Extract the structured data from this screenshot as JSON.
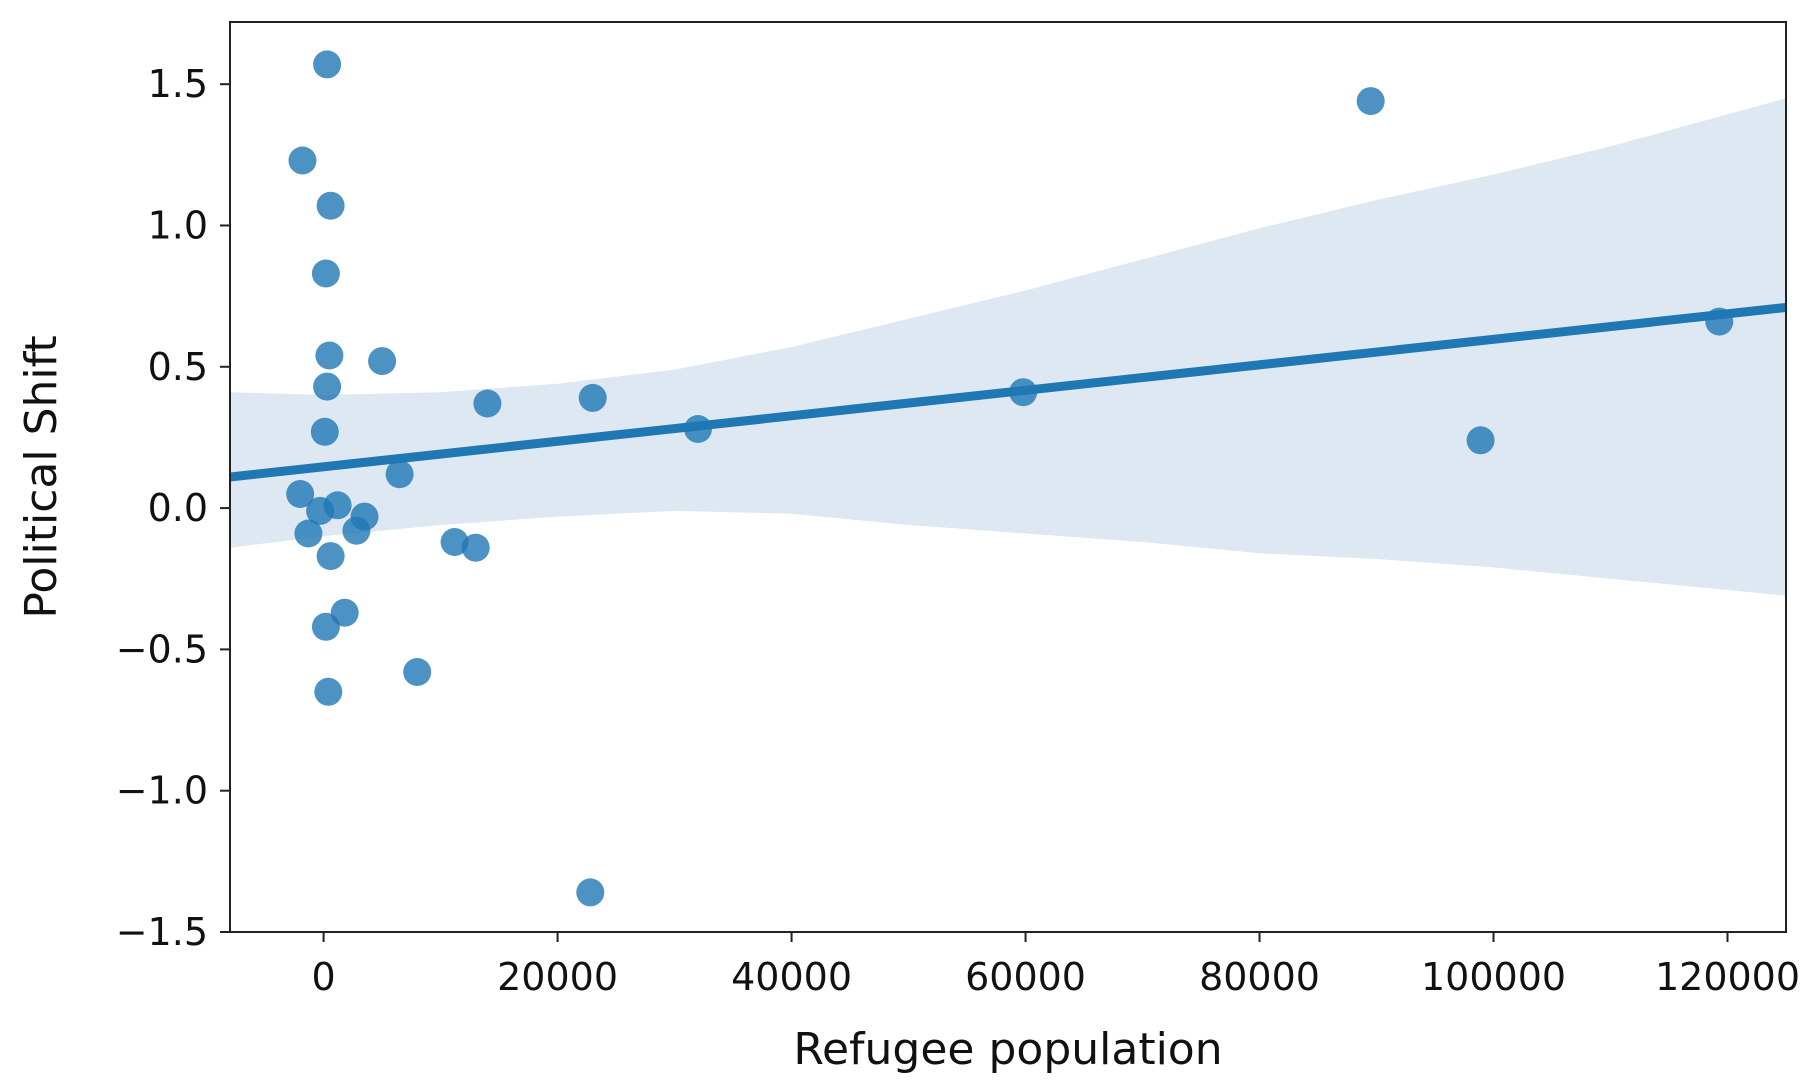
{
  "chart_data": {
    "type": "scatter",
    "title": "",
    "xlabel": "Refugee population",
    "ylabel": "Political Shift",
    "xlim": [
      -8000,
      125000
    ],
    "ylim": [
      -1.5,
      1.72
    ],
    "x_ticks": [
      0,
      20000,
      40000,
      60000,
      80000,
      100000,
      120000
    ],
    "x_tick_labels": [
      "0",
      "20000",
      "40000",
      "60000",
      "80000",
      "100000",
      "120000"
    ],
    "y_ticks": [
      -1.5,
      -1.0,
      -0.5,
      0.0,
      0.5,
      1.0,
      1.5
    ],
    "y_tick_labels": [
      "−1.5",
      "−1.0",
      "−0.5",
      "0.0",
      "0.5",
      "1.0",
      "1.5"
    ],
    "grid": false,
    "legend": "none",
    "colors": {
      "points": "#1f77b4",
      "regression_line": "#1f77b4",
      "confidence_band": "#dde8f2",
      "axes": "#222222",
      "text": "#111111",
      "background": "#ffffff"
    },
    "points": [
      {
        "x": 300,
        "y": 1.57
      },
      {
        "x": -1800,
        "y": 1.23
      },
      {
        "x": 600,
        "y": 1.07
      },
      {
        "x": 200,
        "y": 0.83
      },
      {
        "x": 500,
        "y": 0.54
      },
      {
        "x": 5000,
        "y": 0.52
      },
      {
        "x": 300,
        "y": 0.43
      },
      {
        "x": 14000,
        "y": 0.37
      },
      {
        "x": 23000,
        "y": 0.39
      },
      {
        "x": 100,
        "y": 0.27
      },
      {
        "x": 32000,
        "y": 0.28
      },
      {
        "x": 6500,
        "y": 0.12
      },
      {
        "x": -2000,
        "y": 0.05
      },
      {
        "x": -300,
        "y": -0.01
      },
      {
        "x": 1200,
        "y": 0.01
      },
      {
        "x": 3500,
        "y": -0.03
      },
      {
        "x": -1300,
        "y": -0.09
      },
      {
        "x": 2800,
        "y": -0.08
      },
      {
        "x": 11200,
        "y": -0.12
      },
      {
        "x": 13000,
        "y": -0.14
      },
      {
        "x": 600,
        "y": -0.17
      },
      {
        "x": 1800,
        "y": -0.37
      },
      {
        "x": 200,
        "y": -0.42
      },
      {
        "x": 8000,
        "y": -0.58
      },
      {
        "x": 400,
        "y": -0.65
      },
      {
        "x": 22800,
        "y": -1.36
      },
      {
        "x": 59800,
        "y": 0.41
      },
      {
        "x": 89500,
        "y": 1.44
      },
      {
        "x": 98900,
        "y": 0.24
      },
      {
        "x": 119300,
        "y": 0.66
      }
    ],
    "regression_line": {
      "x": [
        -8000,
        125000
      ],
      "y": [
        0.11,
        0.71
      ]
    },
    "confidence_band": {
      "x": [
        -8000,
        0,
        10000,
        20000,
        30000,
        40000,
        50000,
        60000,
        70000,
        80000,
        90000,
        100000,
        110000,
        125000
      ],
      "upper": [
        0.41,
        0.4,
        0.41,
        0.44,
        0.49,
        0.57,
        0.67,
        0.77,
        0.88,
        0.99,
        1.09,
        1.18,
        1.28,
        1.45
      ],
      "lower": [
        -0.14,
        -0.1,
        -0.06,
        -0.03,
        -0.01,
        -0.02,
        -0.06,
        -0.09,
        -0.12,
        -0.16,
        -0.18,
        -0.21,
        -0.25,
        -0.31
      ]
    }
  }
}
